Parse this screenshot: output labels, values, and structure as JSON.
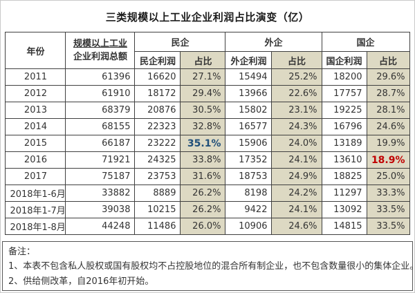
{
  "title": "三类规模以上工业企业利润占比演变（亿）",
  "colors": {
    "share_column_bg": "#ddd9c3",
    "table_border": "#3f3f3f",
    "highlight_blue": "#1f4e79",
    "highlight_red": "#c00000"
  },
  "table": {
    "headers": {
      "year": "年份",
      "total_line1": "规模以上工业",
      "total_line2": "企业利润总额",
      "groups": [
        {
          "label": "民企",
          "profit": "民企利润",
          "share": "占比"
        },
        {
          "label": "外企",
          "profit": "外企利润",
          "share": "占比"
        },
        {
          "label": "国企",
          "profit": "国企利润",
          "share": "占比"
        }
      ]
    },
    "rows": [
      [
        "2011",
        "61396",
        "16620",
        "27.1%",
        "15494",
        "25.2%",
        "18200",
        "29.6%"
      ],
      [
        "2012",
        "61910",
        "18172",
        "29.4%",
        "13966",
        "22.6%",
        "17757",
        "28.7%"
      ],
      [
        "2013",
        "68379",
        "20876",
        "30.5%",
        "15802",
        "23.1%",
        "19225",
        "28.1%"
      ],
      [
        "2014",
        "68155",
        "22323",
        "32.8%",
        "16577",
        "24.3%",
        "16796",
        "24.6%"
      ],
      [
        "2015",
        "66187",
        "23222",
        "35.1%",
        "15906",
        "24.0%",
        "13189",
        "19.9%"
      ],
      [
        "2016",
        "71921",
        "24325",
        "33.8%",
        "17352",
        "24.1%",
        "13610",
        "18.9%"
      ],
      [
        "2017",
        "75187",
        "23753",
        "31.6%",
        "18753",
        "24.9%",
        "18825",
        "25.0%"
      ],
      [
        "2018年1-6月",
        "33882",
        "8889",
        "26.2%",
        "8198",
        "24.2%",
        "11297",
        "33.3%"
      ],
      [
        "2018年1-7月",
        "39038",
        "10215",
        "26.2%",
        "9422",
        "24.1%",
        "13092",
        "33.5%"
      ],
      [
        "2018年1-8月",
        "44248",
        "11486",
        "26.0%",
        "10906",
        "24.6%",
        "14815",
        "33.5%"
      ]
    ],
    "highlights": [
      {
        "row": 4,
        "col": 3,
        "style": "hl-blue"
      },
      {
        "row": 5,
        "col": 7,
        "style": "hl-red"
      }
    ]
  },
  "notes": {
    "label": "备注：",
    "items": [
      "1、本表不包含私人股权或国有股权均不占控股地位的混合所有制企业，也不包含数量很小的集体企业。",
      "2、供给侧改革，自2016年初开始。"
    ]
  }
}
